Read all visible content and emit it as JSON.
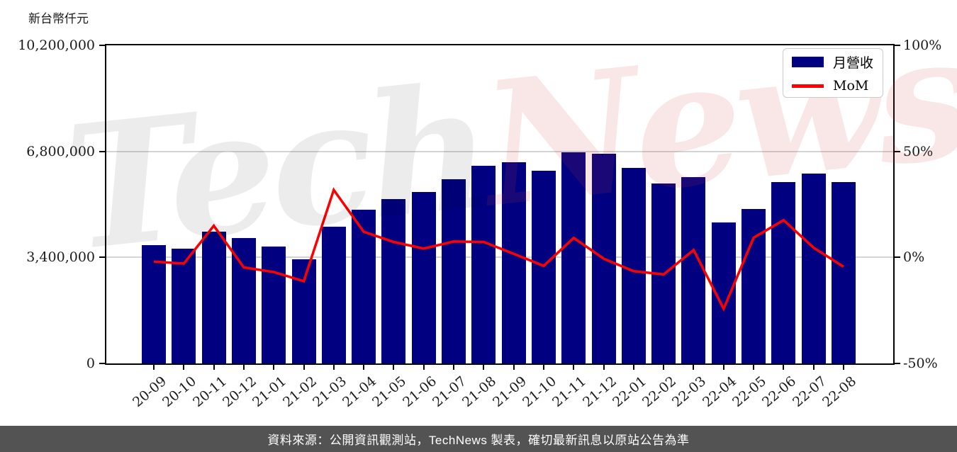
{
  "title": "新台幣仟元",
  "watermark": {
    "part1": "Tech",
    "part2": "News"
  },
  "legend": {
    "bar_label": "月營收",
    "line_label": "MoM"
  },
  "footer": {
    "text": "資料來源：公開資訊觀測站，TechNews 製表，確切最新訊息以原站公告為準"
  },
  "colors": {
    "bar": "#000080",
    "line": "#ff0000",
    "grid": "#d4d4d4",
    "axis": "#000000",
    "footer_bg": "#535353",
    "watermark_gray": "rgba(0,0,0,0.075)",
    "watermark_pink": "rgba(208,58,58,0.13)"
  },
  "chart_data": {
    "type": "bar+line",
    "title": "新台幣仟元",
    "categories": [
      "20-09",
      "20-10",
      "20-11",
      "20-12",
      "21-01",
      "21-02",
      "21-03",
      "21-04",
      "21-05",
      "21-06",
      "21-07",
      "21-08",
      "21-09",
      "21-10",
      "21-11",
      "21-12",
      "22-01",
      "22-02",
      "22-03",
      "22-04",
      "22-05",
      "22-06",
      "22-07",
      "22-08"
    ],
    "series": [
      {
        "name": "月營收",
        "type": "bar",
        "axis": "left",
        "unit": "新台幣仟元",
        "values": [
          3790000,
          3680000,
          4230000,
          4030000,
          3740000,
          3330000,
          4390000,
          4920000,
          5280000,
          5500000,
          5910000,
          6340000,
          6450000,
          6190000,
          6760000,
          6720000,
          6280000,
          5780000,
          5980000,
          4530000,
          4950000,
          5820000,
          6090000,
          5820000
        ]
      },
      {
        "name": "MoM",
        "type": "line",
        "axis": "right",
        "unit": "%",
        "values": [
          -2.0,
          -2.9,
          14.9,
          -4.7,
          -6.9,
          -11.2,
          31.8,
          12.1,
          7.3,
          4.2,
          7.5,
          7.3,
          1.7,
          -4.0,
          9.2,
          -0.6,
          -6.5,
          -8.0,
          3.5,
          -24.2,
          9.3,
          17.6,
          4.6,
          -4.4
        ]
      }
    ],
    "left_axis": {
      "title": "新台幣仟元",
      "range": [
        0,
        10200000
      ],
      "ticks": [
        0,
        3400000,
        6800000,
        10200000
      ],
      "tick_labels": [
        "0",
        "3,400,000",
        "6,800,000",
        "10,200,000"
      ]
    },
    "right_axis": {
      "range": [
        -50,
        100
      ],
      "ticks": [
        -50,
        0,
        50,
        100
      ],
      "tick_labels": [
        "-50%",
        "0%",
        "50%",
        "100%"
      ]
    },
    "grid": "horizontal",
    "legend_position": "top-right"
  }
}
